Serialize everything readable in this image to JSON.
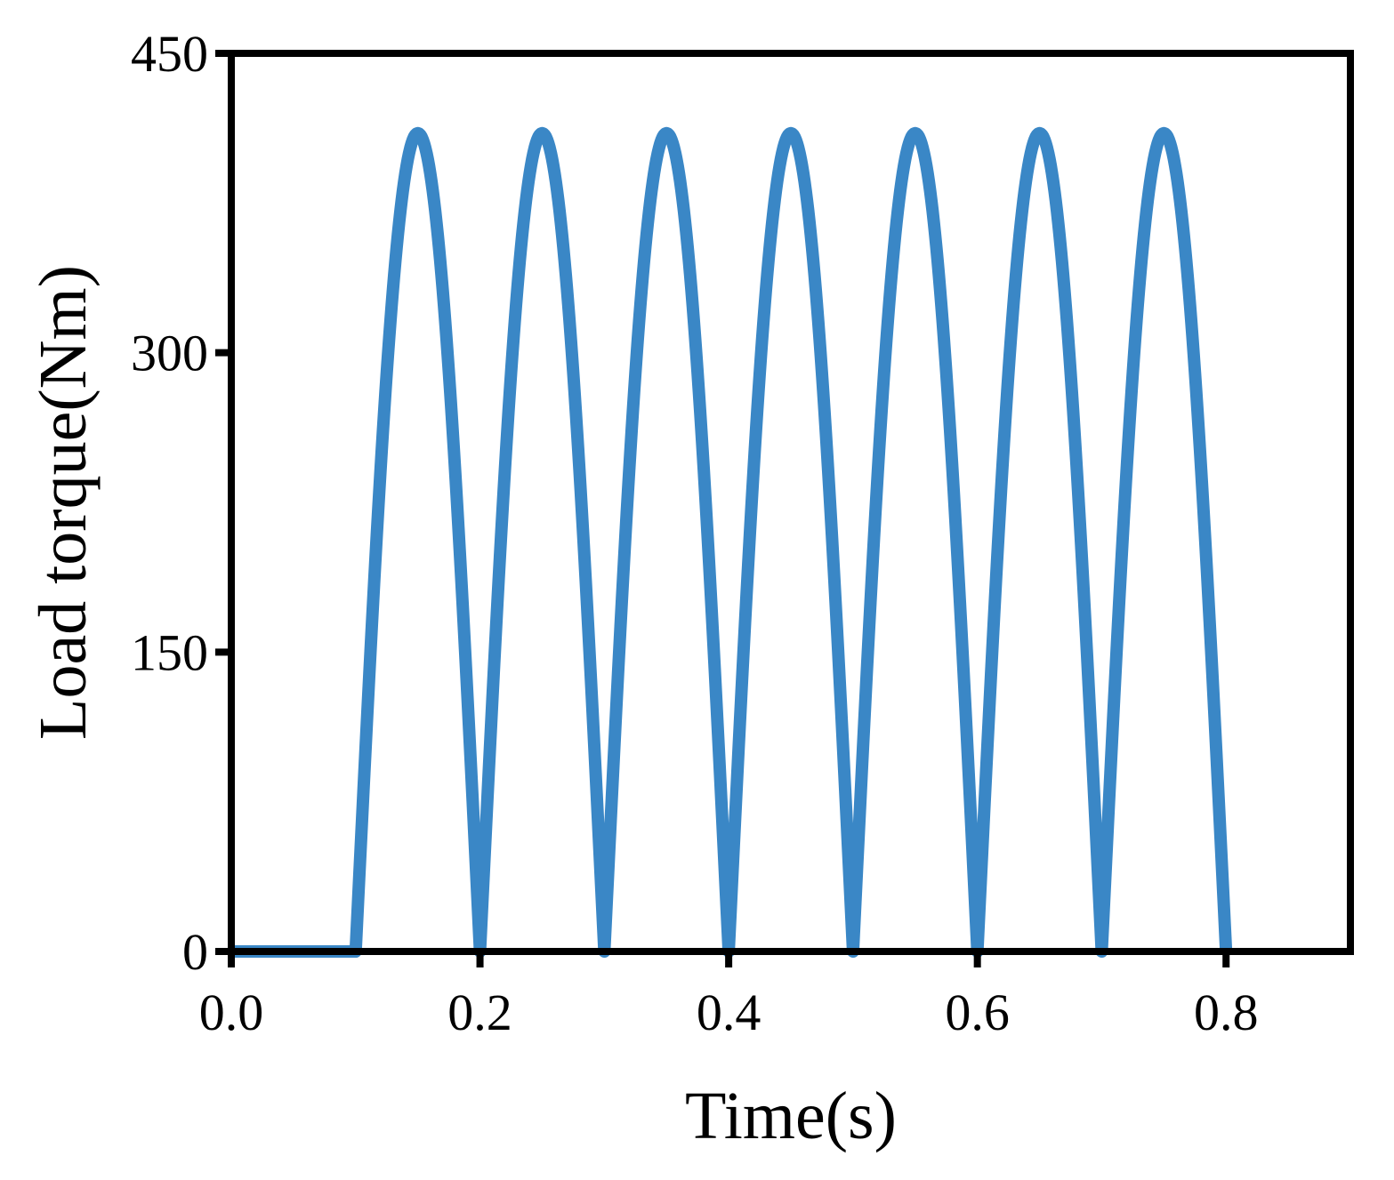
{
  "chart_data": {
    "type": "line",
    "title": "",
    "xlabel": "Time(s)",
    "ylabel": "Load torque(Nm)",
    "xlim": [
      0.0,
      0.9
    ],
    "ylim": [
      0,
      450
    ],
    "xticks": [
      0.0,
      0.2,
      0.4,
      0.6,
      0.8
    ],
    "xtick_labels": [
      "0.0",
      "0.2",
      "0.4",
      "0.6",
      "0.8"
    ],
    "yticks": [
      0,
      150,
      300,
      450
    ],
    "ytick_labels": [
      "0",
      "150",
      "300",
      "450"
    ],
    "grid": false,
    "legend": "none",
    "series": [
      {
        "color": "#3a87c6",
        "description_x_start": 0.1,
        "x": [
          0.0,
          0.1,
          0.125,
          0.15,
          0.175,
          0.2,
          0.225,
          0.25,
          0.275,
          0.3,
          0.325,
          0.35,
          0.375,
          0.4,
          0.425,
          0.45,
          0.475,
          0.5,
          0.525,
          0.55,
          0.575,
          0.6,
          0.625,
          0.65,
          0.675,
          0.7,
          0.725,
          0.75,
          0.775,
          0.8
        ],
        "y": [
          0,
          0,
          290,
          410,
          290,
          0,
          290,
          410,
          290,
          0,
          290,
          410,
          290,
          0,
          290,
          410,
          290,
          0,
          290,
          410,
          290,
          0,
          290,
          410,
          290,
          0,
          290,
          410,
          290,
          0
        ]
      }
    ]
  }
}
